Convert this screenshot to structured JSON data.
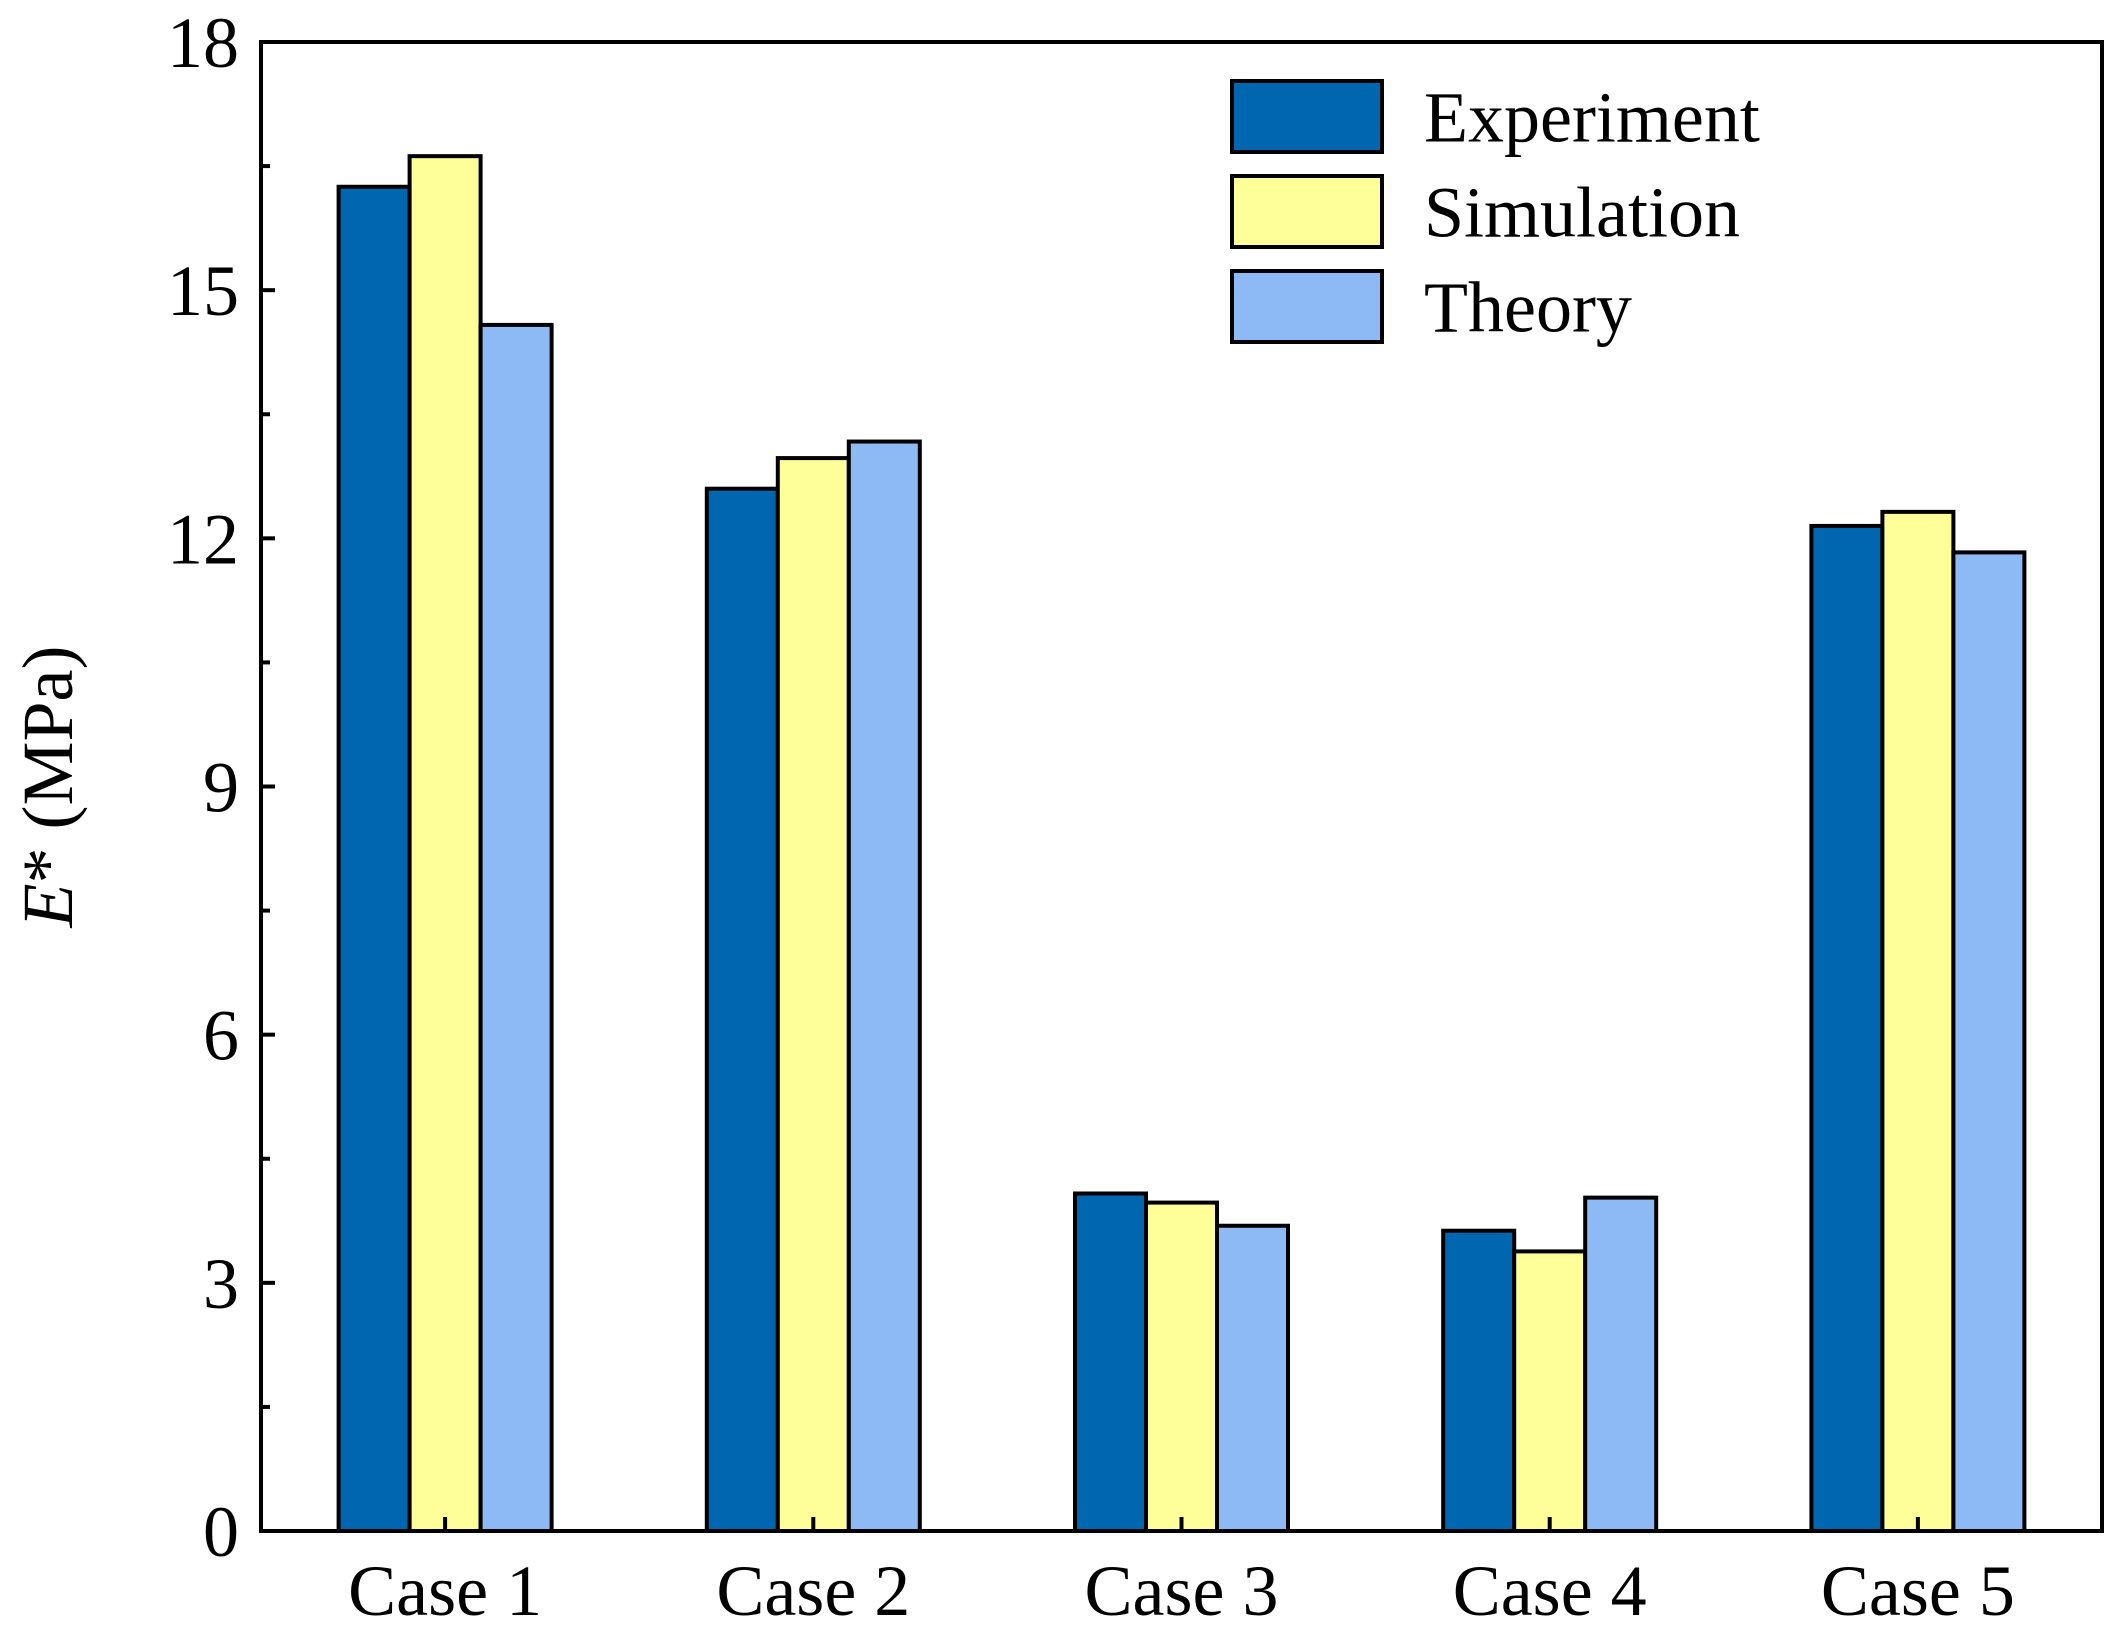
{
  "chart_data": {
    "type": "bar",
    "title": "",
    "xlabel": "",
    "ylabel": {
      "symbol": "E",
      "suffix": "* (MPa)"
    },
    "categories": [
      "Case 1",
      "Case 2",
      "Case 3",
      "Case 4",
      "Case 5"
    ],
    "series": [
      {
        "name": "Experiment",
        "color": "#0066b0",
        "values": [
          16.25,
          12.6,
          4.08,
          3.63,
          12.15
        ]
      },
      {
        "name": "Simulation",
        "color": "#ffff99",
        "values": [
          16.62,
          12.97,
          3.97,
          3.38,
          12.32
        ]
      },
      {
        "name": "Theory",
        "color": "#8dbaf5",
        "values": [
          14.58,
          13.17,
          3.69,
          4.03,
          11.83
        ]
      }
    ],
    "ylim": [
      0,
      18
    ],
    "yticks": [
      0,
      3,
      6,
      9,
      12,
      15,
      18
    ],
    "yminor_step": 1.5,
    "legend_position": "top-right",
    "grid": false
  }
}
